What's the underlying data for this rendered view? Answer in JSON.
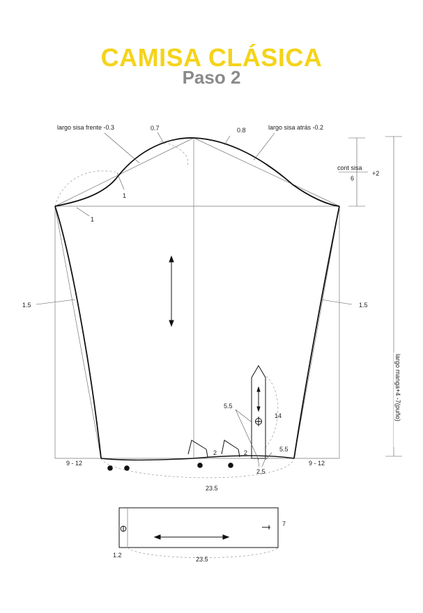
{
  "title": {
    "main": "CAMISA CLÁSICA",
    "sub": "Paso 2"
  },
  "labels": {
    "armhole_front": "largo sisa frente -0.3",
    "armhole_back": "largo sisa atrás -0.2",
    "val_07": "0.7",
    "val_08": "0.8",
    "cont_sisa": "cont sisa",
    "six": "6",
    "plus2": "+2",
    "val_1a": "1",
    "val_1b": "1",
    "side_left": "1.5",
    "side_right": "1.5",
    "sleeve_length": "largo manga+4 -7(puño)",
    "val_55a": "5.5",
    "val_55b": "5.5",
    "val_14": "14",
    "val_2a": "2",
    "val_2b": "2",
    "val_25": "2.5",
    "hem_left": "9 - 12",
    "hem_right": "9 - 12",
    "hem_width": "23.5",
    "cuff_height": "7",
    "cuff_offset": "1.2",
    "cuff_width": "23.5"
  },
  "colors": {
    "title": "#f5d31a",
    "subtitle": "#8a8a8a",
    "line": "#111111",
    "guide": "#888888"
  }
}
